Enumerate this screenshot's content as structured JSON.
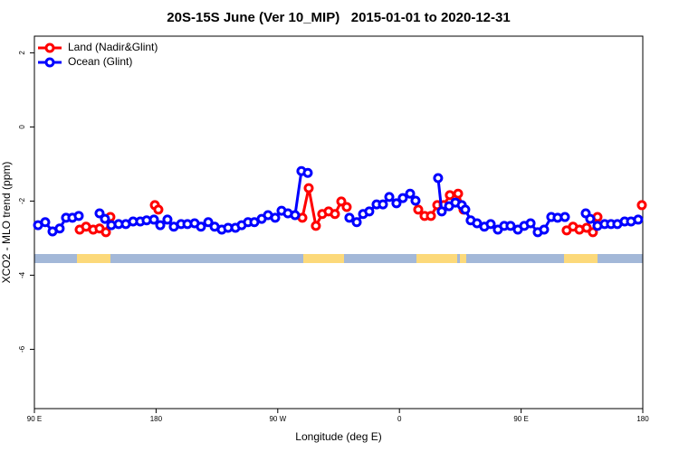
{
  "chart_data": {
    "type": "line",
    "title": "20S-15S June (Ver 10_MIP)   2015-01-01 to 2020-12-31",
    "x_label": "Longitude (deg E)",
    "y_label": "XCO2 - MLO trend (ppm)",
    "xlim": [
      90,
      540
    ],
    "ylim": [
      -7.6,
      2.45
    ],
    "xticks": [
      {
        "value": 90,
        "label": "90 E"
      },
      180,
      {
        "value": 270,
        "label": "90 W"
      },
      {
        "value": 360,
        "label": "0"
      },
      {
        "value": 450,
        "label": "90 E"
      },
      {
        "value": 540,
        "label": "180"
      }
    ],
    "yticks": [
      2,
      0,
      -2,
      -4,
      -6
    ],
    "legend": "top-left",
    "series": [
      {
        "name": "Land (Nadir&Glint)",
        "color": "#ff0000",
        "x": [
          123.5,
          128.2,
          133.5,
          138.2,
          142.9,
          146.2,
          null,
          179.1,
          181.7,
          null,
          288.2,
          292.9,
          298.2,
          302.9,
          307.6,
          312.3,
          317.0,
          321.0,
          null,
          373.9,
          378.6,
          383.3,
          388.0,
          392.7,
          397.3,
          403.4,
          407.4,
          null,
          483.7,
          488.4,
          493.1,
          498.5,
          503.1,
          506.5,
          null,
          539.3
        ],
        "values": [
          -2.77,
          -2.69,
          -2.77,
          -2.74,
          -2.84,
          -2.43,
          null,
          -2.11,
          -2.23,
          null,
          -2.45,
          -1.65,
          -2.67,
          -2.35,
          -2.28,
          -2.35,
          -2.01,
          -2.16,
          null,
          -2.23,
          -2.4,
          -2.4,
          -2.11,
          -2.11,
          -1.84,
          -1.8,
          -2.23,
          null,
          -2.79,
          -2.69,
          -2.77,
          -2.72,
          -2.84,
          -2.43,
          null,
          -2.11
        ]
      },
      {
        "name": "Ocean (Glint)",
        "color": "#0000ff",
        "x": [
          92.7,
          98.0,
          103.4,
          108.7,
          113.4,
          118.1,
          122.8,
          null,
          138.2,
          142.2,
          146.9,
          152.3,
          157.6,
          163.0,
          168.3,
          173.0,
          178.4,
          183.1,
          188.4,
          193.1,
          198.5,
          203.2,
          208.5,
          213.2,
          218.6,
          223.3,
          228.6,
          233.3,
          238.7,
          243.3,
          248.0,
          252.7,
          258.1,
          262.8,
          268.1,
          272.8,
          277.5,
          282.8,
          287.5,
          292.2,
          null,
          323.0,
          328.4,
          333.1,
          337.7,
          343.1,
          347.8,
          352.5,
          357.8,
          362.5,
          367.9,
          371.9,
          null,
          388.6,
          391.3,
          396.7,
          401.4,
          406.1,
          408.7,
          412.7,
          417.4,
          422.8,
          427.5,
          432.8,
          437.5,
          442.2,
          447.6,
          452.3,
          457.0,
          462.3,
          467.0,
          472.3,
          477.0,
          482.4,
          null,
          497.8,
          501.1,
          506.5,
          511.8,
          516.5,
          521.2,
          526.6,
          531.3,
          536.6
        ],
        "values": [
          -2.65,
          -2.57,
          -2.82,
          -2.74,
          -2.45,
          -2.45,
          -2.4,
          null,
          -2.33,
          -2.48,
          -2.65,
          -2.62,
          -2.62,
          -2.55,
          -2.55,
          -2.52,
          -2.5,
          -2.65,
          -2.5,
          -2.69,
          -2.62,
          -2.62,
          -2.6,
          -2.69,
          -2.57,
          -2.69,
          -2.77,
          -2.72,
          -2.72,
          -2.65,
          -2.57,
          -2.57,
          -2.48,
          -2.38,
          -2.45,
          -2.26,
          -2.33,
          -2.38,
          -1.19,
          -1.24,
          null,
          -2.45,
          -2.57,
          -2.35,
          -2.28,
          -2.09,
          -2.09,
          -1.89,
          -2.06,
          -1.92,
          -1.8,
          -1.99,
          null,
          -1.38,
          -2.28,
          -2.14,
          -2.04,
          -2.11,
          -2.23,
          -2.52,
          -2.6,
          -2.69,
          -2.62,
          -2.77,
          -2.67,
          -2.67,
          -2.77,
          -2.67,
          -2.6,
          -2.84,
          -2.77,
          -2.43,
          -2.45,
          -2.43,
          null,
          -2.33,
          -2.48,
          -2.67,
          -2.62,
          -2.62,
          -2.62,
          -2.55,
          -2.55,
          -2.5
        ]
      }
    ]
  }
}
